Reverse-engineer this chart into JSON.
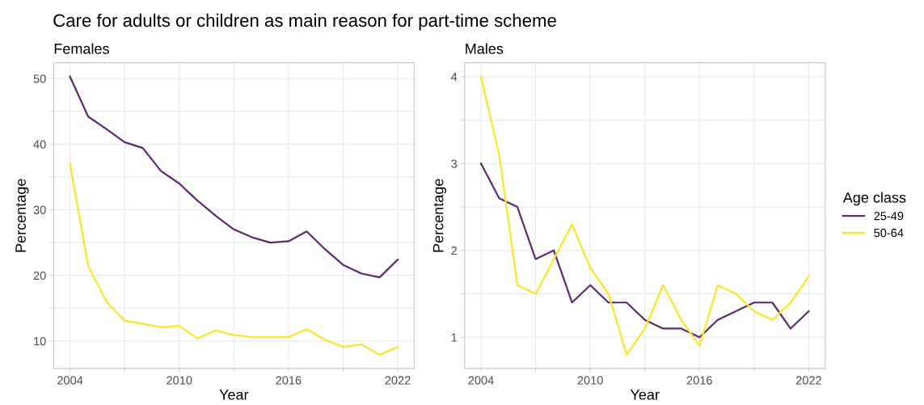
{
  "chart_data": [
    {
      "type": "line",
      "title": "Care for adults or children as main reason for part-time scheme",
      "subtitle": "Females",
      "xlabel": "Year",
      "ylabel": "Percentage",
      "x": [
        2004,
        2005,
        2006,
        2007,
        2008,
        2009,
        2010,
        2011,
        2012,
        2013,
        2014,
        2015,
        2016,
        2017,
        2018,
        2019,
        2020,
        2021,
        2022
      ],
      "series": [
        {
          "color": "#5e2a70",
          "values": [
            50.3,
            44.2,
            42.3,
            40.3,
            39.4,
            35.9,
            34.0,
            31.4,
            29.1,
            27.0,
            25.8,
            25.0,
            25.2,
            26.7,
            24.0,
            21.6,
            20.3,
            19.7,
            22.4
          ]
        },
        {
          "color": "#fde725",
          "values": [
            37.0,
            21.4,
            16.0,
            13.1,
            12.6,
            12.1,
            12.3,
            10.4,
            11.6,
            10.9,
            10.6,
            10.6,
            10.6,
            11.8,
            10.2,
            9.1,
            9.5,
            7.9,
            9.1
          ]
        }
      ],
      "xlim": [
        2003.1,
        2022.9
      ],
      "ylim": [
        5.8,
        52.4
      ],
      "xticks": [
        2004,
        {
          "value": 2007,
          "label": null
        },
        2010,
        {
          "value": 2013,
          "label": null
        },
        2016,
        {
          "value": 2019,
          "label": null
        },
        2022
      ],
      "yticks": [
        10,
        {
          "value": 15,
          "label": null
        },
        20,
        {
          "value": 25,
          "label": null
        },
        30,
        {
          "value": 35,
          "label": null
        },
        40,
        {
          "value": 45,
          "label": null
        },
        50
      ],
      "grid": true,
      "marker": "none",
      "line_style": "solid"
    },
    {
      "type": "line",
      "subtitle": "Males",
      "xlabel": "Year",
      "ylabel": "Percentage",
      "legend_title": "Age class",
      "x": [
        2004,
        2005,
        2006,
        2007,
        2008,
        2009,
        2010,
        2011,
        2012,
        2013,
        2014,
        2015,
        2016,
        2017,
        2018,
        2019,
        2020,
        2021,
        2022
      ],
      "series": [
        {
          "name": "25-49",
          "color": "#5e2a70",
          "values": [
            3.0,
            2.6,
            2.5,
            1.9,
            2.0,
            1.4,
            1.6,
            1.4,
            1.4,
            1.2,
            1.1,
            1.1,
            1.0,
            1.2,
            1.3,
            1.4,
            1.4,
            1.1,
            1.3
          ]
        },
        {
          "name": "50-64",
          "color": "#fde725",
          "values": [
            4.0,
            3.1,
            1.6,
            1.5,
            1.9,
            2.3,
            1.8,
            1.5,
            0.8,
            1.1,
            1.6,
            1.2,
            0.9,
            1.6,
            1.5,
            1.3,
            1.2,
            1.4,
            1.7
          ]
        }
      ],
      "xlim": [
        2003.1,
        2022.9
      ],
      "ylim": [
        0.64,
        4.16
      ],
      "xticks": [
        2004,
        {
          "value": 2007,
          "label": null
        },
        2010,
        {
          "value": 2013,
          "label": null
        },
        2016,
        {
          "value": 2019,
          "label": null
        },
        2022
      ],
      "yticks": [
        1,
        {
          "value": 1.5,
          "label": null
        },
        2,
        {
          "value": 2.5,
          "label": null
        },
        3,
        {
          "value": 3.5,
          "label": null
        },
        4
      ],
      "grid": true,
      "legend": "right",
      "marker": "none",
      "line_style": "solid"
    }
  ]
}
